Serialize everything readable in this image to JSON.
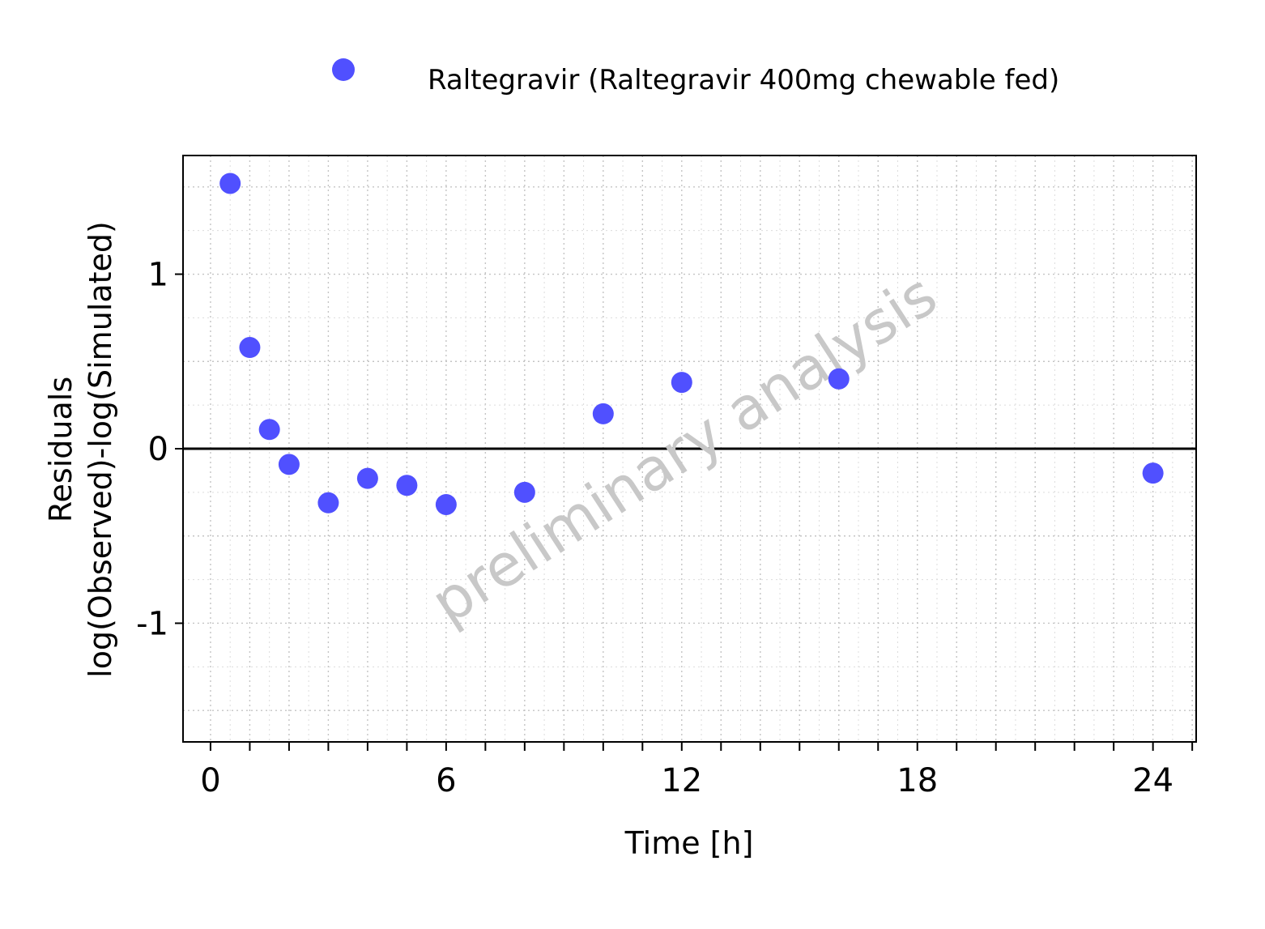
{
  "chart_data": {
    "type": "scatter",
    "title": "",
    "xlabel": "Time [h]",
    "ylabel_lines": [
      "Residuals",
      "log(Observed)-log(Simulated)"
    ],
    "xlim": [
      -0.7,
      25.1
    ],
    "ylim": [
      -1.68,
      1.68
    ],
    "xticks": [
      0,
      6,
      12,
      18,
      24
    ],
    "xtick_labels": [
      "0",
      "6",
      "12",
      "18",
      "24"
    ],
    "yticks": [
      -1,
      0,
      1
    ],
    "ytick_labels": [
      "-1",
      "0",
      "1"
    ],
    "grid": true,
    "reference_line_y": 0,
    "legend_position": "top",
    "watermark": "preliminary analysis",
    "series": [
      {
        "name": "Raltegravir (Raltegravir 400mg chewable fed)",
        "color": "#5050ff",
        "marker": "circle",
        "x": [
          0.5,
          1.0,
          1.5,
          2.0,
          3.0,
          4.0,
          5.0,
          6.0,
          8.0,
          10.0,
          12.0,
          16.0,
          24.0
        ],
        "y": [
          1.52,
          0.58,
          0.11,
          -0.09,
          -0.31,
          -0.17,
          -0.21,
          -0.32,
          -0.25,
          0.2,
          0.38,
          0.4,
          -0.14
        ]
      }
    ]
  }
}
